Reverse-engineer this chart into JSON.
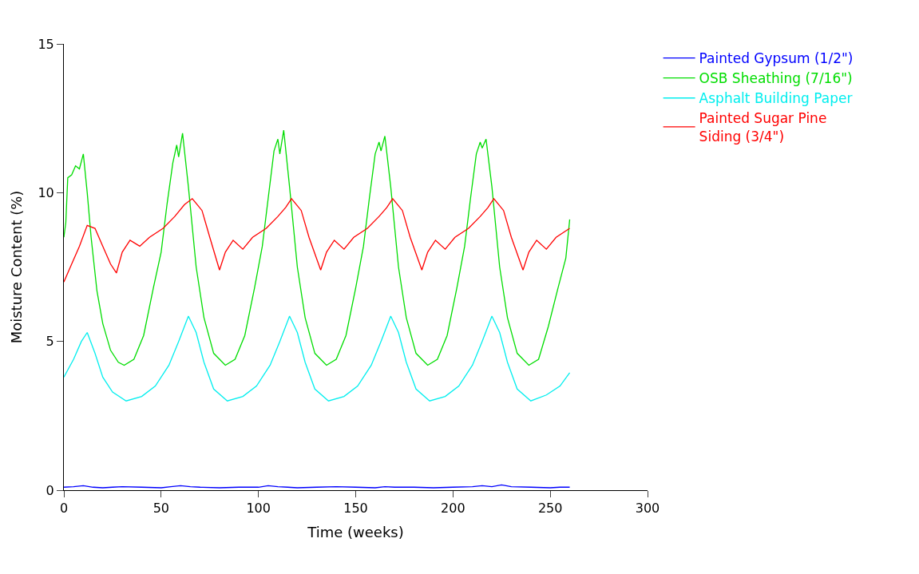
{
  "chart_data": {
    "type": "line",
    "xlabel": "Time (weeks)",
    "ylabel": "Moisture Content (%)",
    "xlim": [
      0,
      300
    ],
    "xticks": [
      0,
      50,
      100,
      150,
      200,
      250,
      300
    ],
    "ylim": [
      0,
      15
    ],
    "yticks": [
      0,
      5,
      10,
      15
    ],
    "legend": "top right",
    "line_style": "solid",
    "marker": "none",
    "series": [
      {
        "name": "Painted Gypsum (1/2\")",
        "color": "#0000ff",
        "x": [
          0,
          5,
          10,
          15,
          20,
          25,
          30,
          40,
          50,
          55,
          60,
          65,
          70,
          80,
          90,
          100,
          105,
          110,
          115,
          120,
          130,
          140,
          150,
          160,
          165,
          170,
          180,
          190,
          200,
          210,
          215,
          220,
          225,
          230,
          240,
          250,
          255,
          260
        ],
        "values": [
          0.1,
          0.12,
          0.15,
          0.1,
          0.08,
          0.1,
          0.12,
          0.1,
          0.08,
          0.12,
          0.15,
          0.12,
          0.1,
          0.08,
          0.1,
          0.1,
          0.15,
          0.12,
          0.1,
          0.08,
          0.1,
          0.12,
          0.1,
          0.08,
          0.12,
          0.1,
          0.1,
          0.08,
          0.1,
          0.12,
          0.15,
          0.12,
          0.18,
          0.12,
          0.1,
          0.08,
          0.1,
          0.1
        ]
      },
      {
        "name": "OSB Sheathing (7/16\")",
        "color": "#00dd00",
        "x": [
          0,
          1,
          2,
          4,
          6,
          8,
          10,
          12,
          14,
          17,
          20,
          24,
          28,
          31,
          36,
          41,
          46,
          50,
          53,
          56,
          58,
          59,
          61,
          64,
          68,
          72,
          77,
          83,
          88,
          93,
          98,
          102,
          105,
          108,
          110,
          111,
          113,
          116,
          120,
          124,
          129,
          135,
          140,
          145,
          150,
          154,
          157,
          160,
          162,
          163,
          165,
          168,
          172,
          176,
          181,
          187,
          192,
          197,
          202,
          206,
          209,
          212,
          214,
          215,
          217,
          220,
          224,
          228,
          233,
          239,
          244,
          249,
          254,
          258,
          260
        ],
        "values": [
          8.5,
          9.0,
          10.5,
          10.6,
          10.9,
          10.8,
          11.3,
          10.0,
          8.5,
          6.7,
          5.6,
          4.7,
          4.3,
          4.2,
          4.4,
          5.2,
          6.8,
          8.0,
          9.6,
          11.0,
          11.6,
          11.2,
          12.0,
          10.2,
          7.5,
          5.8,
          4.6,
          4.2,
          4.4,
          5.2,
          6.8,
          8.2,
          9.8,
          11.4,
          11.8,
          11.3,
          12.1,
          10.2,
          7.5,
          5.8,
          4.6,
          4.2,
          4.4,
          5.2,
          6.8,
          8.2,
          9.8,
          11.3,
          11.7,
          11.4,
          11.9,
          10.2,
          7.5,
          5.8,
          4.6,
          4.2,
          4.4,
          5.2,
          6.8,
          8.2,
          9.8,
          11.3,
          11.7,
          11.5,
          11.8,
          10.2,
          7.5,
          5.8,
          4.6,
          4.2,
          4.4,
          5.5,
          6.8,
          7.8,
          9.1
        ]
      },
      {
        "name": "Asphalt Building Paper",
        "color": "#00eeee",
        "x": [
          0,
          5,
          9,
          12,
          16,
          20,
          25,
          32,
          40,
          47,
          54,
          59,
          64,
          68,
          72,
          77,
          84,
          92,
          99,
          106,
          111,
          116,
          120,
          124,
          129,
          136,
          144,
          151,
          158,
          163,
          168,
          172,
          176,
          181,
          188,
          196,
          203,
          210,
          215,
          220,
          224,
          228,
          233,
          240,
          248,
          255,
          260
        ],
        "values": [
          3.8,
          4.4,
          5.0,
          5.3,
          4.6,
          3.8,
          3.3,
          3.0,
          3.15,
          3.5,
          4.2,
          5.0,
          5.85,
          5.3,
          4.3,
          3.4,
          3.0,
          3.15,
          3.5,
          4.2,
          5.0,
          5.85,
          5.3,
          4.3,
          3.4,
          3.0,
          3.15,
          3.5,
          4.2,
          5.0,
          5.85,
          5.3,
          4.3,
          3.4,
          3.0,
          3.15,
          3.5,
          4.2,
          5.0,
          5.85,
          5.3,
          4.3,
          3.4,
          3.0,
          3.2,
          3.5,
          3.95
        ]
      },
      {
        "name": "Painted Sugar Pine Siding (3/4\")",
        "color": "#ff0000",
        "x": [
          0,
          4,
          8,
          12,
          16,
          20,
          24,
          27,
          30,
          34,
          39,
          44,
          51,
          57,
          62,
          66,
          71,
          75,
          80,
          83,
          87,
          92,
          97,
          104,
          110,
          114,
          117,
          122,
          126,
          132,
          135,
          139,
          144,
          149,
          156,
          162,
          166,
          169,
          174,
          178,
          184,
          187,
          191,
          196,
          201,
          208,
          214,
          218,
          221,
          226,
          230,
          236,
          239,
          243,
          248,
          253,
          260
        ],
        "values": [
          7.0,
          7.6,
          8.2,
          8.9,
          8.8,
          8.2,
          7.6,
          7.3,
          8.0,
          8.4,
          8.2,
          8.5,
          8.8,
          9.2,
          9.6,
          9.8,
          9.4,
          8.5,
          7.4,
          8.0,
          8.4,
          8.1,
          8.5,
          8.8,
          9.2,
          9.5,
          9.8,
          9.4,
          8.5,
          7.4,
          8.0,
          8.4,
          8.1,
          8.5,
          8.8,
          9.2,
          9.5,
          9.8,
          9.4,
          8.5,
          7.4,
          8.0,
          8.4,
          8.1,
          8.5,
          8.8,
          9.2,
          9.5,
          9.8,
          9.4,
          8.5,
          7.4,
          8.0,
          8.4,
          8.1,
          8.5,
          8.8
        ]
      }
    ]
  }
}
